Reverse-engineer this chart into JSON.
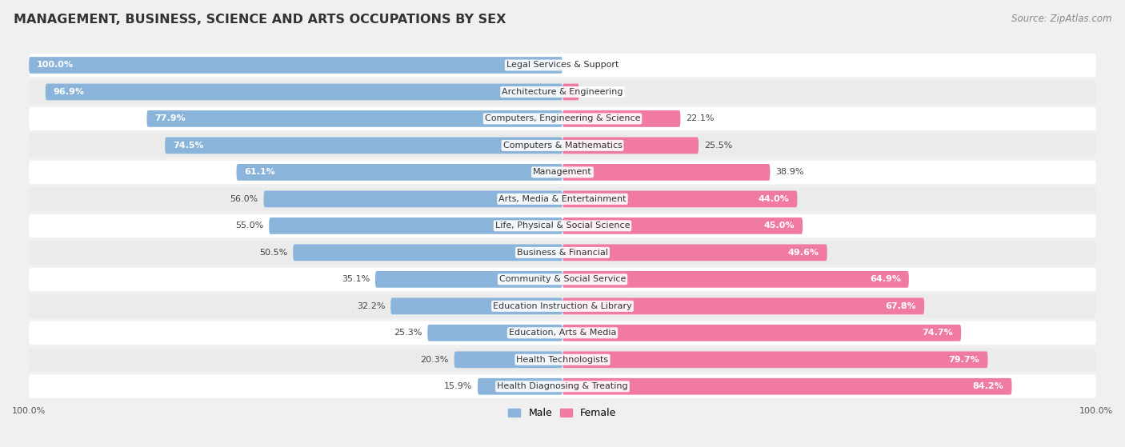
{
  "title": "MANAGEMENT, BUSINESS, SCIENCE AND ARTS OCCUPATIONS BY SEX",
  "source": "Source: ZipAtlas.com",
  "categories": [
    "Legal Services & Support",
    "Architecture & Engineering",
    "Computers, Engineering & Science",
    "Computers & Mathematics",
    "Management",
    "Arts, Media & Entertainment",
    "Life, Physical & Social Science",
    "Business & Financial",
    "Community & Social Service",
    "Education Instruction & Library",
    "Education, Arts & Media",
    "Health Technologists",
    "Health Diagnosing & Treating"
  ],
  "male_pct": [
    100.0,
    96.9,
    77.9,
    74.5,
    61.1,
    56.0,
    55.0,
    50.5,
    35.1,
    32.2,
    25.3,
    20.3,
    15.9
  ],
  "female_pct": [
    0.0,
    3.1,
    22.1,
    25.5,
    38.9,
    44.0,
    45.0,
    49.6,
    64.9,
    67.8,
    74.7,
    79.7,
    84.2
  ],
  "male_color": "#8ab4d9",
  "female_color": "#f07aa0",
  "bg_color": "#f0f0f0",
  "row_bg_even": "#ffffff",
  "row_bg_odd": "#ebebeb",
  "title_fontsize": 11.5,
  "source_fontsize": 8.5,
  "cat_label_fontsize": 8,
  "bar_label_fontsize": 8,
  "legend_fontsize": 9,
  "bar_height": 0.62,
  "male_label_inside_threshold": 60.0,
  "female_label_inside_threshold": 43.0
}
